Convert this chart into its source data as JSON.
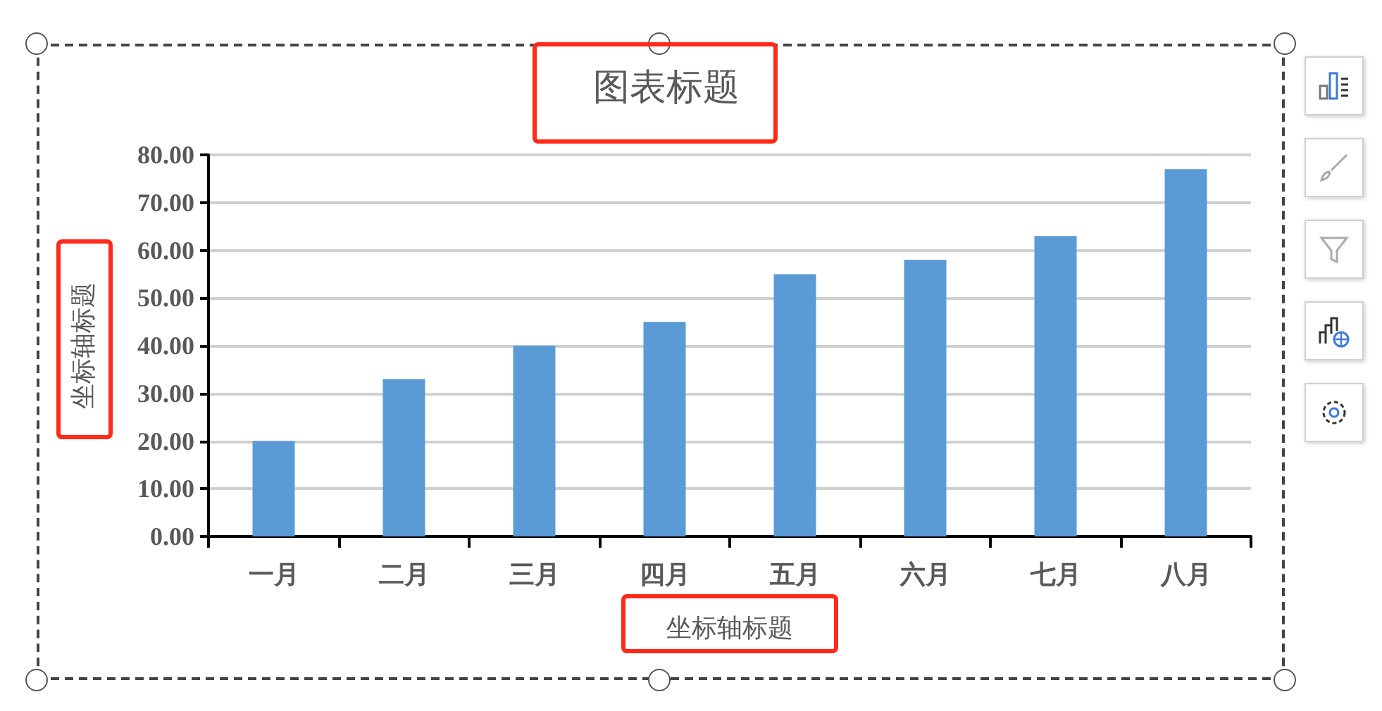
{
  "chart_data": {
    "type": "bar",
    "title": "图表标题",
    "xlabel": "坐标轴标题",
    "ylabel": "坐标轴标题",
    "categories": [
      "一月",
      "二月",
      "三月",
      "四月",
      "五月",
      "六月",
      "七月",
      "八月"
    ],
    "values": [
      20,
      33,
      40,
      45,
      55,
      58,
      63,
      77
    ],
    "color": "#5b9bd5",
    "ylim": [
      0,
      80
    ],
    "yticks": [
      {
        "value": 0,
        "label": "0.00"
      },
      {
        "value": 10,
        "label": "10.00"
      },
      {
        "value": 20,
        "label": "20.00"
      },
      {
        "value": 30,
        "label": "30.00"
      },
      {
        "value": 40,
        "label": "40.00"
      },
      {
        "value": 50,
        "label": "50.00"
      },
      {
        "value": 60,
        "label": "60.00"
      },
      {
        "value": 70,
        "label": "70.00"
      },
      {
        "value": 80,
        "label": "80.00"
      }
    ],
    "grid": "y"
  }
}
